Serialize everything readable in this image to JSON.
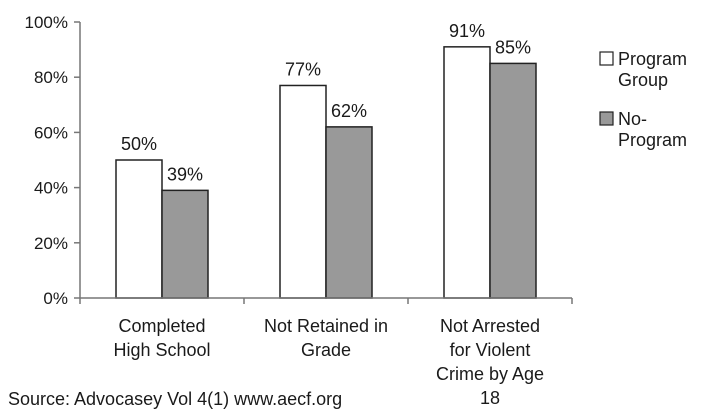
{
  "chart_data": {
    "type": "bar",
    "categories": [
      [
        "Completed",
        "High School"
      ],
      [
        "Not Retained in",
        "Grade"
      ],
      [
        "Not Arrested",
        "for Violent",
        "Crime by Age",
        "18"
      ]
    ],
    "series": [
      {
        "name": "Program Group",
        "legend_lines": [
          "Program",
          "Group"
        ],
        "values": [
          50,
          77,
          91
        ],
        "labels": [
          "50%",
          "77%",
          "91%"
        ],
        "color": "#ffffff"
      },
      {
        "name": "No-Program",
        "legend_lines": [
          "No-",
          "Program"
        ],
        "values": [
          39,
          62,
          85
        ],
        "labels": [
          "39%",
          "62%",
          "85%"
        ],
        "color": "#999999"
      }
    ],
    "ylim": [
      0,
      100
    ],
    "yticks": [
      0,
      20,
      40,
      60,
      80,
      100
    ],
    "ytick_labels": [
      "0%",
      "20%",
      "40%",
      "60%",
      "80%",
      "100%"
    ],
    "title": "",
    "xlabel": "",
    "ylabel": "",
    "grid": false,
    "legend_position": "right"
  },
  "source_note": "Source: Advocasey Vol 4(1) www.aecf.org"
}
